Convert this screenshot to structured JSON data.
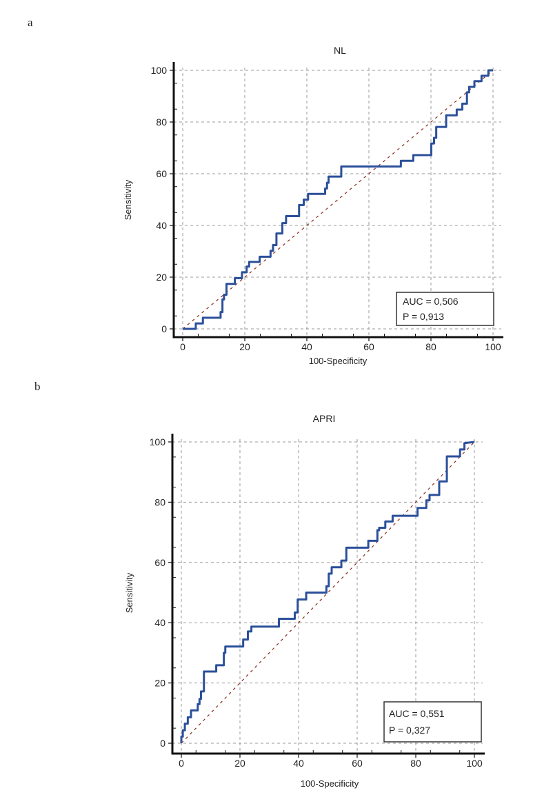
{
  "panel_labels": [
    "a",
    "b"
  ],
  "chart_data": [
    {
      "type": "line",
      "title": "NL",
      "xlabel": "100-Specificity",
      "ylabel": "Sensitivity",
      "xlim": [
        0,
        100
      ],
      "ylim": [
        0,
        100
      ],
      "xticks": [
        "0",
        "20",
        "40",
        "60",
        "80",
        "100"
      ],
      "yticks": [
        "0",
        "20",
        "40",
        "60",
        "80",
        "100"
      ],
      "grid": true,
      "annotation": [
        "AUC = 0,506",
        "P = 0,913"
      ],
      "annotation_position": "bottom-right",
      "colors": {
        "curve": "#2b4f9a",
        "diagonal": "#8b2a1a",
        "grid": "#9a9a9a"
      },
      "diagonal": [
        [
          0,
          0
        ],
        [
          100,
          100
        ]
      ],
      "roc": [
        [
          0,
          0
        ],
        [
          4.2,
          0
        ],
        [
          4.2,
          2.1
        ],
        [
          6.5,
          2.1
        ],
        [
          6.5,
          4.3
        ],
        [
          12.2,
          4.3
        ],
        [
          12.2,
          6.5
        ],
        [
          12.8,
          6.5
        ],
        [
          12.8,
          11.4
        ],
        [
          13.3,
          11.4
        ],
        [
          13.3,
          13.2
        ],
        [
          14.1,
          13.2
        ],
        [
          14.1,
          17.4
        ],
        [
          16.8,
          17.4
        ],
        [
          16.8,
          19.6
        ],
        [
          19.1,
          19.6
        ],
        [
          19.1,
          21.9
        ],
        [
          20.6,
          21.9
        ],
        [
          20.6,
          24.1
        ],
        [
          21.4,
          24.1
        ],
        [
          21.4,
          25.9
        ],
        [
          24.8,
          25.9
        ],
        [
          24.8,
          27.9
        ],
        [
          28.3,
          27.9
        ],
        [
          28.3,
          30.2
        ],
        [
          29.1,
          30.2
        ],
        [
          29.1,
          32.4
        ],
        [
          30.2,
          32.4
        ],
        [
          30.2,
          36.9
        ],
        [
          32.1,
          36.9
        ],
        [
          32.1,
          40.9
        ],
        [
          33.3,
          40.9
        ],
        [
          33.3,
          43.6
        ],
        [
          37.5,
          43.6
        ],
        [
          37.5,
          47.9
        ],
        [
          39,
          47.9
        ],
        [
          39,
          50
        ],
        [
          40.4,
          50
        ],
        [
          40.4,
          52.2
        ],
        [
          45.9,
          52.2
        ],
        [
          45.9,
          54.3
        ],
        [
          46.5,
          54.3
        ],
        [
          46.5,
          56.5
        ],
        [
          47,
          56.5
        ],
        [
          47,
          58.9
        ],
        [
          51.1,
          58.9
        ],
        [
          51.1,
          62.8
        ],
        [
          70.3,
          62.8
        ],
        [
          70.3,
          65
        ],
        [
          74.3,
          65
        ],
        [
          74.3,
          67.2
        ],
        [
          80.1,
          67.2
        ],
        [
          80.1,
          71.7
        ],
        [
          81,
          71.7
        ],
        [
          81,
          73.9
        ],
        [
          81.7,
          73.9
        ],
        [
          81.7,
          78.1
        ],
        [
          84.9,
          78.1
        ],
        [
          84.9,
          82.6
        ],
        [
          88.3,
          82.6
        ],
        [
          88.3,
          84.8
        ],
        [
          90.1,
          84.8
        ],
        [
          90.1,
          87.1
        ],
        [
          91.6,
          87.1
        ],
        [
          91.6,
          91.5
        ],
        [
          92.3,
          91.5
        ],
        [
          92.3,
          93.6
        ],
        [
          94,
          93.6
        ],
        [
          94,
          95.8
        ],
        [
          96.3,
          95.8
        ],
        [
          96.3,
          97.9
        ],
        [
          98.5,
          97.9
        ],
        [
          98.5,
          100
        ],
        [
          100,
          100
        ]
      ]
    },
    {
      "type": "line",
      "title": "APRI",
      "xlabel": "100-Specificity",
      "ylabel": "Sensitivity",
      "xlim": [
        0,
        100
      ],
      "ylim": [
        0,
        100
      ],
      "xticks": [
        "0",
        "20",
        "40",
        "60",
        "80",
        "100"
      ],
      "yticks": [
        "0",
        "20",
        "40",
        "60",
        "80",
        "100"
      ],
      "grid": true,
      "annotation": [
        "AUC = 0,551",
        "P = 0,327"
      ],
      "annotation_position": "bottom-right",
      "colors": {
        "curve": "#2b4f9a",
        "diagonal": "#8b2a1a",
        "grid": "#9a9a9a"
      },
      "diagonal": [
        [
          0,
          0
        ],
        [
          100,
          100
        ]
      ],
      "roc": [
        [
          0,
          0
        ],
        [
          0,
          2.2
        ],
        [
          0.5,
          2.2
        ],
        [
          0.5,
          4.3
        ],
        [
          1.2,
          4.3
        ],
        [
          1.2,
          6.5
        ],
        [
          2.2,
          6.5
        ],
        [
          2.2,
          8.6
        ],
        [
          3.3,
          8.6
        ],
        [
          3.3,
          10.9
        ],
        [
          5.6,
          10.9
        ],
        [
          5.6,
          13
        ],
        [
          6.2,
          13
        ],
        [
          6.2,
          14.7
        ],
        [
          6.7,
          14.7
        ],
        [
          6.7,
          17.2
        ],
        [
          7.7,
          17.2
        ],
        [
          7.7,
          23.8
        ],
        [
          11.9,
          23.8
        ],
        [
          11.9,
          25.9
        ],
        [
          14.5,
          25.9
        ],
        [
          14.5,
          30
        ],
        [
          15,
          30
        ],
        [
          15,
          32.1
        ],
        [
          21.1,
          32.1
        ],
        [
          21.1,
          34.4
        ],
        [
          22.7,
          34.4
        ],
        [
          22.7,
          37.1
        ],
        [
          23.9,
          37.1
        ],
        [
          23.9,
          38.7
        ],
        [
          33.3,
          38.7
        ],
        [
          33.3,
          41.3
        ],
        [
          38.7,
          41.3
        ],
        [
          38.7,
          43.4
        ],
        [
          39.7,
          43.4
        ],
        [
          39.7,
          47.7
        ],
        [
          42.6,
          47.7
        ],
        [
          42.6,
          50
        ],
        [
          49.5,
          50
        ],
        [
          49.5,
          52.1
        ],
        [
          50.3,
          52.1
        ],
        [
          50.3,
          56.3
        ],
        [
          51.3,
          56.3
        ],
        [
          51.3,
          58.4
        ],
        [
          54.6,
          58.4
        ],
        [
          54.6,
          60.6
        ],
        [
          56.3,
          60.6
        ],
        [
          56.3,
          64.9
        ],
        [
          63.8,
          64.9
        ],
        [
          63.8,
          67.2
        ],
        [
          66.9,
          67.2
        ],
        [
          66.9,
          70.7
        ],
        [
          67.5,
          70.7
        ],
        [
          67.5,
          71.5
        ],
        [
          69.6,
          71.5
        ],
        [
          69.6,
          73.6
        ],
        [
          72.1,
          73.6
        ],
        [
          72.1,
          75.5
        ],
        [
          80.6,
          75.5
        ],
        [
          80.6,
          78.1
        ],
        [
          83.6,
          78.1
        ],
        [
          83.6,
          80.6
        ],
        [
          84.7,
          80.6
        ],
        [
          84.7,
          82.4
        ],
        [
          88,
          82.4
        ],
        [
          88,
          86.9
        ],
        [
          90.6,
          86.9
        ],
        [
          90.6,
          95.2
        ],
        [
          95.1,
          95.2
        ],
        [
          95.1,
          97.5
        ],
        [
          96.6,
          97.5
        ],
        [
          96.6,
          99.6
        ],
        [
          100,
          100
        ]
      ]
    }
  ]
}
